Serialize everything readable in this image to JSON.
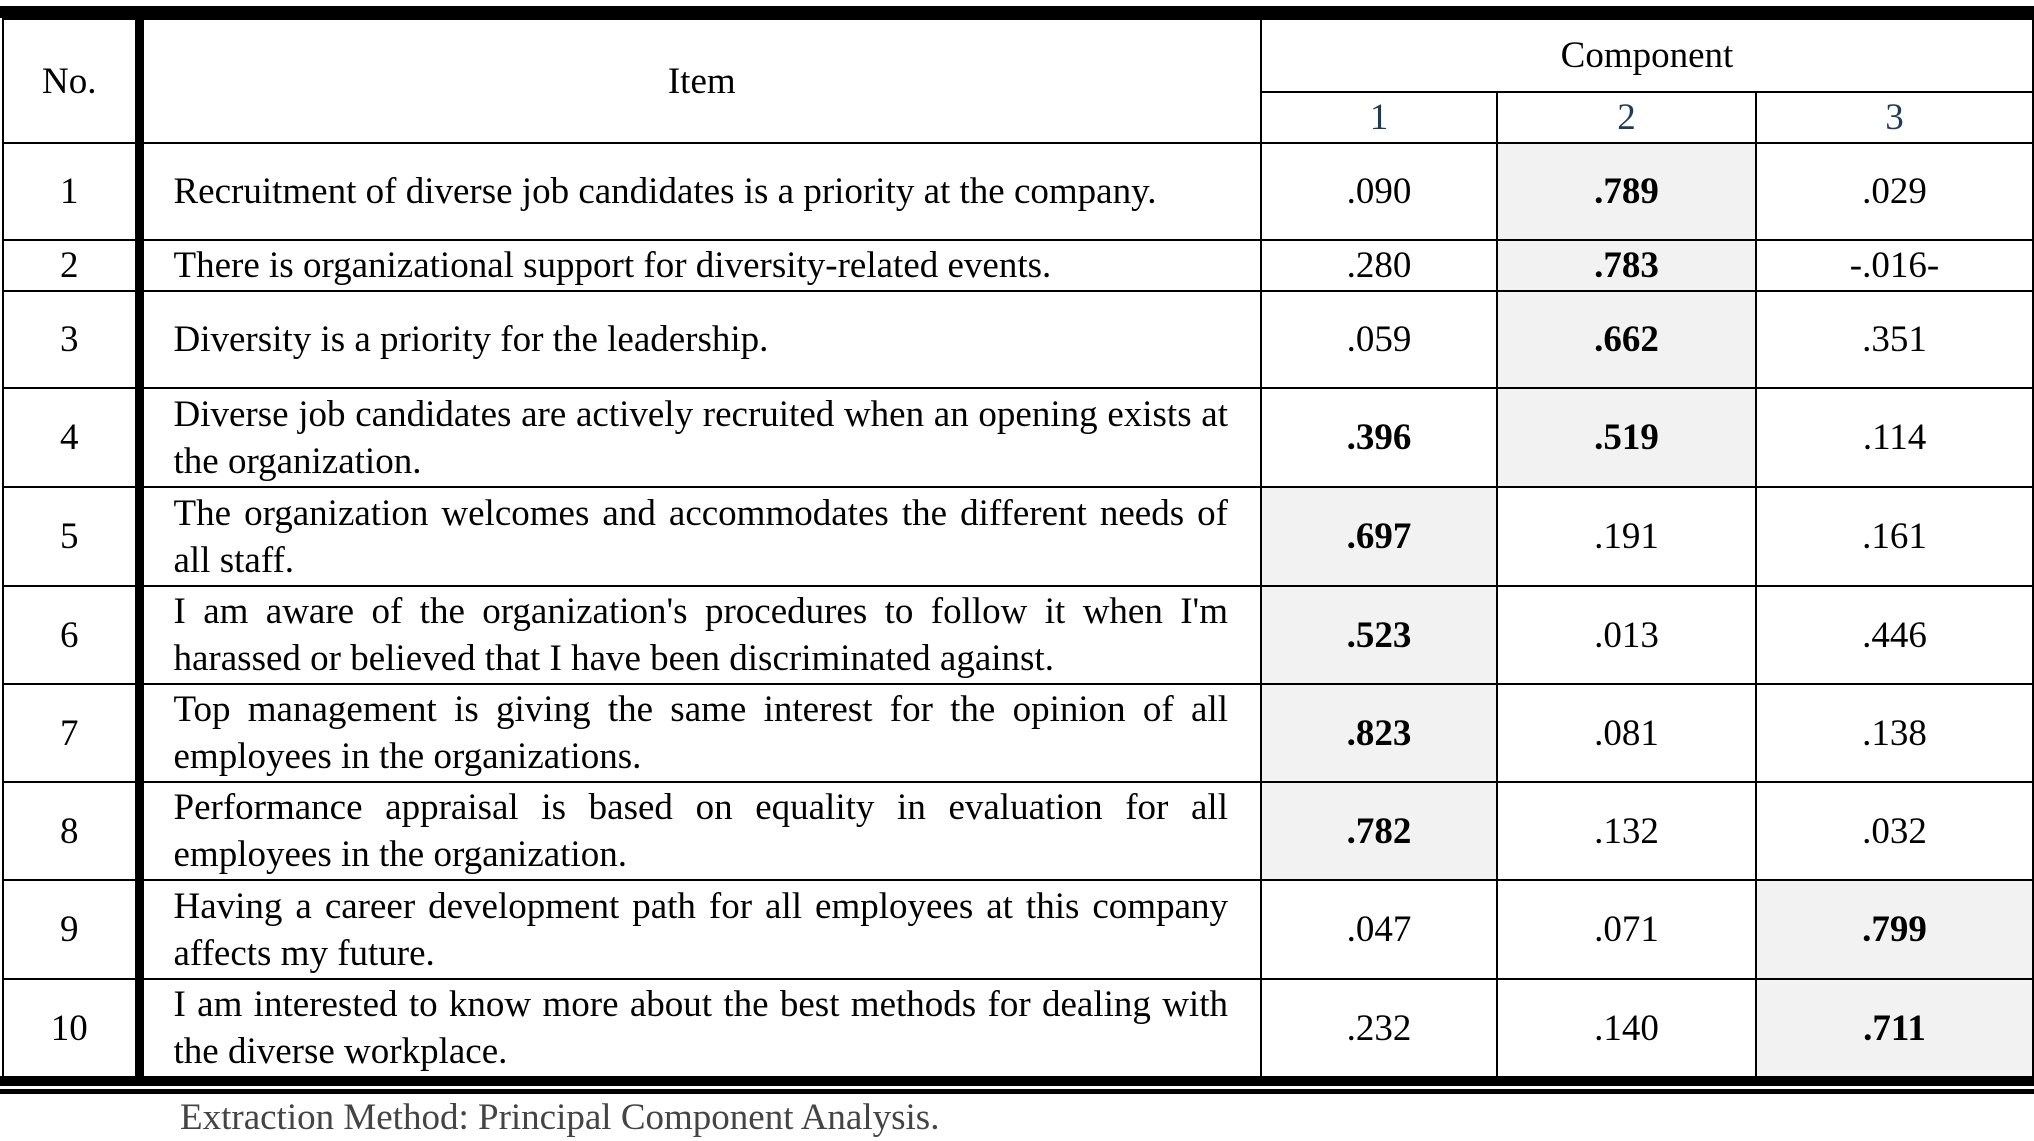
{
  "headers": {
    "no": "No.",
    "item": "Item",
    "component": "Component",
    "components": [
      "1",
      "2",
      "3"
    ]
  },
  "rows": [
    {
      "no": "1",
      "item": "Recruitment of diverse job candidates is a priority at the company.",
      "values": [
        ".090",
        ".789",
        ".029"
      ],
      "bold": [
        false,
        true,
        false
      ],
      "shaded": [
        false,
        true,
        false
      ]
    },
    {
      "no": "2",
      "item": "There is organizational support for diversity-related events.",
      "values": [
        ".280",
        ".783",
        "-.016-"
      ],
      "bold": [
        false,
        true,
        false
      ],
      "shaded": [
        false,
        true,
        false
      ]
    },
    {
      "no": "3",
      "item": "Diversity is a priority for the leadership.",
      "values": [
        ".059",
        ".662",
        ".351"
      ],
      "bold": [
        false,
        true,
        false
      ],
      "shaded": [
        false,
        true,
        false
      ]
    },
    {
      "no": "4",
      "item": "Diverse job candidates are actively recruited when an opening exists at the organization.",
      "values": [
        ".396",
        ".519",
        ".114"
      ],
      "bold": [
        true,
        true,
        false
      ],
      "shaded": [
        false,
        true,
        false
      ]
    },
    {
      "no": "5",
      "item": "The organization welcomes and accommodates the different needs of all staff.",
      "values": [
        ".697",
        ".191",
        ".161"
      ],
      "bold": [
        true,
        false,
        false
      ],
      "shaded": [
        true,
        false,
        false
      ]
    },
    {
      "no": "6",
      "item": "I am aware of the organization's procedures to follow it when I'm harassed or believed that I have been discriminated against.",
      "values": [
        ".523",
        ".013",
        ".446"
      ],
      "bold": [
        true,
        false,
        false
      ],
      "shaded": [
        true,
        false,
        false
      ]
    },
    {
      "no": "7",
      "item": "Top management is giving the same interest for the opinion of all employees in the organizations.",
      "values": [
        ".823",
        ".081",
        ".138"
      ],
      "bold": [
        true,
        false,
        false
      ],
      "shaded": [
        true,
        false,
        false
      ]
    },
    {
      "no": "8",
      "item": "Performance appraisal is based on equality in evaluation for all employees in the organization.",
      "values": [
        ".782",
        ".132",
        ".032"
      ],
      "bold": [
        true,
        false,
        false
      ],
      "shaded": [
        true,
        false,
        false
      ]
    },
    {
      "no": "9",
      "item": "Having a career development path for all employees at this company affects my future.",
      "values": [
        ".047",
        ".071",
        ".799"
      ],
      "bold": [
        false,
        false,
        true
      ],
      "shaded": [
        false,
        false,
        true
      ]
    },
    {
      "no": "10",
      "item": " I am interested to know more about the best methods for dealing with the diverse workplace.",
      "values": [
        ".232",
        ".140",
        ".711"
      ],
      "bold": [
        false,
        false,
        true
      ],
      "shaded": [
        false,
        false,
        true
      ]
    }
  ],
  "footnote": "Extraction Method: Principal Component Analysis.",
  "colors": {
    "shade": "#f2f2f2",
    "component_number": "#1f3b57"
  }
}
